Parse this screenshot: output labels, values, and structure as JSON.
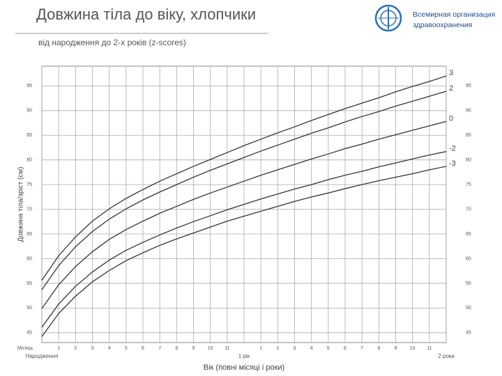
{
  "header": {
    "title": "Довжина тіла до віку, хлопчики",
    "subtitle": "від народження до 2-х років (z-scores)",
    "organization": [
      "Всемирная организация",
      "здравоохранения"
    ]
  },
  "chart_data": {
    "type": "line",
    "y_label": "Довжина тіла/зріст (см)",
    "x_label": "Вік (повні місяці і роки)",
    "x_row_label": "Місяць",
    "x": [
      0,
      1,
      2,
      3,
      4,
      5,
      6,
      7,
      8,
      9,
      10,
      11,
      12,
      13,
      14,
      15,
      16,
      17,
      18,
      19,
      20,
      21,
      22,
      23,
      24
    ],
    "xlim": [
      0,
      24
    ],
    "xticks": [
      {
        "value": 0,
        "label": "Народження"
      },
      1,
      2,
      3,
      4,
      5,
      6,
      7,
      8,
      9,
      10,
      11,
      {
        "value": 12,
        "label": "1 рік"
      },
      {
        "value": 13,
        "label": "1"
      },
      {
        "value": 14,
        "label": "2"
      },
      {
        "value": 15,
        "label": "3"
      },
      {
        "value": 16,
        "label": "4"
      },
      {
        "value": 17,
        "label": "5"
      },
      {
        "value": 18,
        "label": "6"
      },
      {
        "value": 19,
        "label": "7"
      },
      {
        "value": 20,
        "label": "8"
      },
      {
        "value": 21,
        "label": "9"
      },
      {
        "value": 22,
        "label": "10"
      },
      {
        "value": 23,
        "label": "11"
      },
      {
        "value": 24,
        "label": "2 роки"
      }
    ],
    "ylim": [
      43,
      99
    ],
    "yticks": [
      45,
      50,
      55,
      60,
      65,
      70,
      75,
      80,
      85,
      90,
      95
    ],
    "grid": true,
    "series": [
      {
        "name": "3",
        "color": "#333333",
        "values": [
          55.6,
          60.6,
          64.4,
          67.6,
          70.1,
          72.2,
          74.0,
          75.7,
          77.2,
          78.7,
          80.1,
          81.5,
          82.9,
          84.2,
          85.5,
          86.7,
          88.0,
          89.2,
          90.4,
          91.5,
          92.6,
          93.8,
          94.9,
          95.9,
          97.0
        ]
      },
      {
        "name": "2",
        "color": "#333333",
        "values": [
          53.7,
          58.6,
          62.4,
          65.5,
          68.0,
          70.1,
          71.9,
          73.5,
          75.0,
          76.5,
          77.9,
          79.2,
          80.5,
          81.8,
          83.0,
          84.2,
          85.4,
          86.5,
          87.7,
          88.8,
          89.8,
          90.9,
          91.9,
          92.9,
          93.9
        ]
      },
      {
        "name": "0",
        "color": "#333333",
        "values": [
          49.9,
          54.7,
          58.4,
          61.4,
          63.9,
          65.9,
          67.6,
          69.2,
          70.6,
          72.0,
          73.3,
          74.5,
          75.7,
          76.9,
          78.0,
          79.1,
          80.2,
          81.2,
          82.3,
          83.2,
          84.2,
          85.1,
          86.0,
          86.9,
          87.8
        ]
      },
      {
        "name": "-2",
        "color": "#333333",
        "values": [
          46.1,
          50.8,
          54.4,
          57.3,
          59.7,
          61.7,
          63.3,
          64.8,
          66.2,
          67.5,
          68.7,
          69.9,
          71.0,
          72.1,
          73.1,
          74.1,
          75.0,
          76.0,
          76.9,
          77.7,
          78.6,
          79.4,
          80.2,
          81.0,
          81.7
        ]
      },
      {
        "name": "-3",
        "color": "#333333",
        "values": [
          44.2,
          48.9,
          52.4,
          55.3,
          57.6,
          59.6,
          61.2,
          62.7,
          64.0,
          65.2,
          66.4,
          67.6,
          68.6,
          69.6,
          70.6,
          71.6,
          72.5,
          73.3,
          74.2,
          75.0,
          75.8,
          76.5,
          77.2,
          78.0,
          78.7
        ]
      }
    ]
  }
}
